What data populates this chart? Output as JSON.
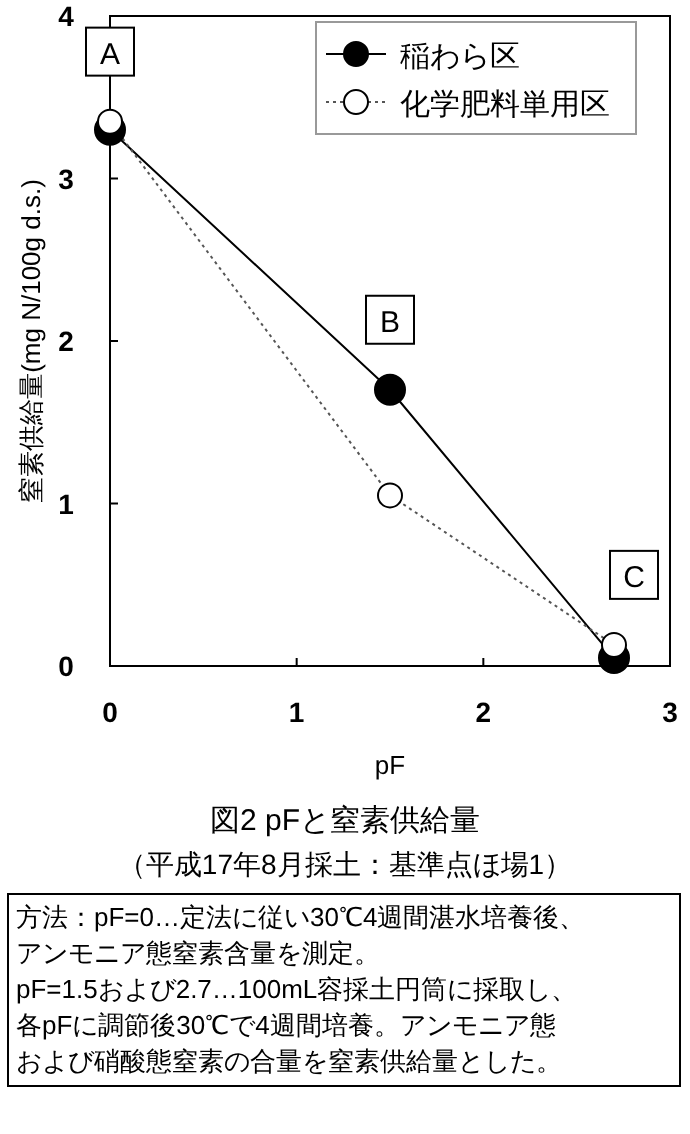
{
  "chart_data": {
    "type": "line",
    "title": "図2 pFと窒素供給量",
    "subtitle": "（平成17年8月採土：基準点ほ場1）",
    "xlabel": "pF",
    "ylabel": "窒素供給量(mg N/100g d.s.)",
    "x": [
      0,
      1.5,
      2.7
    ],
    "series": [
      {
        "name": "稲わら区",
        "color": "#000000",
        "line_style": "solid",
        "values": [
          3.3,
          1.7,
          0.05
        ]
      },
      {
        "name": "化学肥料単用区",
        "color": "#ffffff",
        "line_style": "dotted",
        "values": [
          3.35,
          1.05,
          0.13
        ]
      }
    ],
    "xlim": [
      0,
      3
    ],
    "ylim": [
      0,
      4
    ],
    "xticks": [
      0,
      1,
      2,
      3
    ],
    "yticks": [
      0,
      1,
      2,
      3,
      4
    ],
    "grid": false,
    "legend": "top right",
    "marker": "circle",
    "annotations": [
      {
        "text": "A",
        "x": 0,
        "y": 3.35
      },
      {
        "text": "B",
        "x": 1.5,
        "y": 1.7
      },
      {
        "text": "C",
        "x": 2.7,
        "y": 0.13
      },
      "方法：pF=0…定法に従い30℃4週間湛水培養後、",
      "アンモニア態窒素含量を測定。",
      "pF=1.5および2.7…100mL容採土円筒に採取し、",
      "各pFに調節後30℃で4週間培養。アンモニア態",
      "および硝酸態窒素の合量を窒素供給量とした。"
    ]
  }
}
